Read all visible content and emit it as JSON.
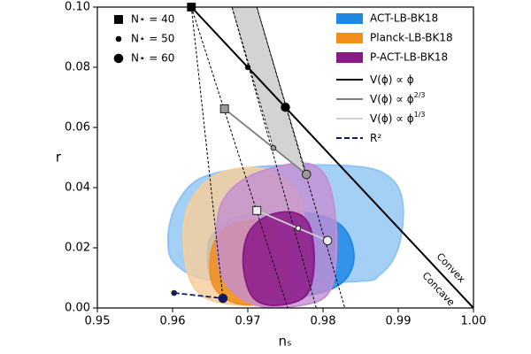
{
  "chart_data": {
    "type": "contour",
    "xlabel": "nₛ",
    "ylabel": "r",
    "xlim": [
      0.95,
      1.0
    ],
    "ylim": [
      0,
      0.1
    ],
    "xticks": [
      0.95,
      0.96,
      0.97,
      0.98,
      0.99,
      {
        "value": 1.0,
        "label": "1.00"
      }
    ],
    "yticks": [
      {
        "value": 0,
        "label": "0.00"
      },
      0.02,
      0.04,
      0.06,
      0.08,
      {
        "value": 0.1,
        "label": "0.10"
      }
    ],
    "contours": [
      {
        "name": "ACT-LB-BK18",
        "color": "#1e88e5",
        "light_color": "#8ec4f4",
        "outer": {
          "x": [
            0.9606,
            0.9641,
            0.9724,
            0.9841,
            0.9888,
            0.9906,
            0.99,
            0.9876,
            0.9841,
            0.9665,
            0.9606,
            0.9594
          ],
          "y": [
            0.0347,
            0.0435,
            0.0471,
            0.0471,
            0.0435,
            0.0347,
            0.02,
            0.0112,
            0.0088,
            0.0088,
            0.0141,
            0.0229
          ]
        },
        "inner": {
          "x": [
            0.9653,
            0.9688,
            0.9771,
            0.9824,
            0.9841,
            0.9824,
            0.9771,
            0.9688,
            0.9653,
            0.9647
          ],
          "y": [
            0.0244,
            0.0303,
            0.0318,
            0.0274,
            0.0171,
            0.0082,
            0.0038,
            0.0038,
            0.0097,
            0.0171
          ]
        }
      },
      {
        "name": "Planck-LB-BK18",
        "color": "#f28e1c",
        "light_color": "#f7cd9a",
        "outer": {
          "x": [
            0.9618,
            0.9653,
            0.9712,
            0.9759,
            0.9776,
            0.9782,
            0.9765,
            0.97,
            0.9641,
            0.9618
          ],
          "y": [
            0.0318,
            0.0435,
            0.0465,
            0.0406,
            0.0288,
            0.0141,
            0.0024,
            0.0009,
            0.0038,
            0.0141
          ]
        },
        "inner": {
          "x": [
            0.9653,
            0.9676,
            0.9724,
            0.9747,
            0.9753,
            0.9729,
            0.9682,
            0.9653
          ],
          "y": [
            0.02,
            0.0274,
            0.0288,
            0.0229,
            0.0112,
            0.0024,
            0.0018,
            0.0082
          ]
        }
      },
      {
        "name": "P-ACT-LB-BK18",
        "color": "#8b1a89",
        "light_color": "#c48fd2",
        "outer": {
          "x": [
            0.9665,
            0.97,
            0.9759,
            0.9794,
            0.9812,
            0.9818,
            0.9808,
            0.9771,
            0.9712,
            0.9671,
            0.9659
          ],
          "y": [
            0.0347,
            0.0435,
            0.0479,
            0.0465,
            0.0376,
            0.02,
            0.0053,
            0.0009,
            0.0009,
            0.0082,
            0.02
          ]
        },
        "inner": {
          "x": [
            0.97,
            0.9724,
            0.9759,
            0.9782,
            0.9788,
            0.9776,
            0.9735,
            0.9706,
            0.9694
          ],
          "y": [
            0.0244,
            0.0303,
            0.0318,
            0.0274,
            0.0141,
            0.0038,
            0.0009,
            0.0038,
            0.0141
          ]
        }
      }
    ],
    "band": {
      "color": "#d3d3d3",
      "x": [
        0.9679,
        0.9712,
        0.9778,
        0.9734
      ],
      "y": [
        0.1,
        0.1,
        0.0444,
        0.0532
      ]
    },
    "dashed_lines": [
      {
        "x": [
          0.9625,
          0.9667
        ],
        "y": [
          0.1,
          0.0032
        ]
      },
      {
        "x": [
          0.9625,
          0.9753
        ],
        "y": [
          0.1,
          0.0
        ]
      },
      {
        "x": [
          0.9679,
          0.9791
        ],
        "y": [
          0.1,
          0.0
        ]
      },
      {
        "x": [
          0.9712,
          0.9829
        ],
        "y": [
          0.1,
          0.0
        ]
      }
    ],
    "markers": [
      {
        "label": "N⋆ = 40",
        "shape": "square"
      },
      {
        "label": "N⋆ = 50",
        "shape": "small-dot"
      },
      {
        "label": "N⋆ = 60",
        "shape": "big-dot"
      }
    ],
    "models": [
      {
        "name": "V(ϕ) ∝ ϕ",
        "color": "#000000",
        "marker_color": "#000000",
        "dashed": false,
        "line": {
          "x": [
            0.9625,
            1.0
          ],
          "y": [
            0.1,
            0.0
          ]
        },
        "points": {
          "x": [
            0.9625,
            0.97,
            0.975
          ],
          "y": [
            0.1,
            0.08,
            0.0667
          ]
        }
      },
      {
        "name": "V(ϕ) ∝ ϕ",
        "exponent": "2/3",
        "color": "#7f7f7f",
        "marker_color": "#9a9a9a",
        "dashed": false,
        "points": {
          "x": [
            0.9669,
            0.9734,
            0.9778
          ],
          "y": [
            0.0662,
            0.0532,
            0.0444
          ]
        }
      },
      {
        "name": "V(ϕ) ∝ ϕ",
        "exponent": "1/3",
        "color": "#d0d0d0",
        "marker_color": "#eeeeee",
        "dashed": false,
        "points": {
          "x": [
            0.9712,
            0.9767,
            0.9806
          ],
          "y": [
            0.0324,
            0.0265,
            0.0224
          ]
        }
      },
      {
        "name": "R²",
        "color": "#0d1a6b",
        "marker_color": "#0d1a6b",
        "dashed": true,
        "points": {
          "x": [
            null,
            0.9602,
            0.9667
          ],
          "y": [
            null,
            0.005,
            0.0032
          ]
        }
      }
    ],
    "annotations": [
      "Convex",
      "Concave"
    ]
  }
}
